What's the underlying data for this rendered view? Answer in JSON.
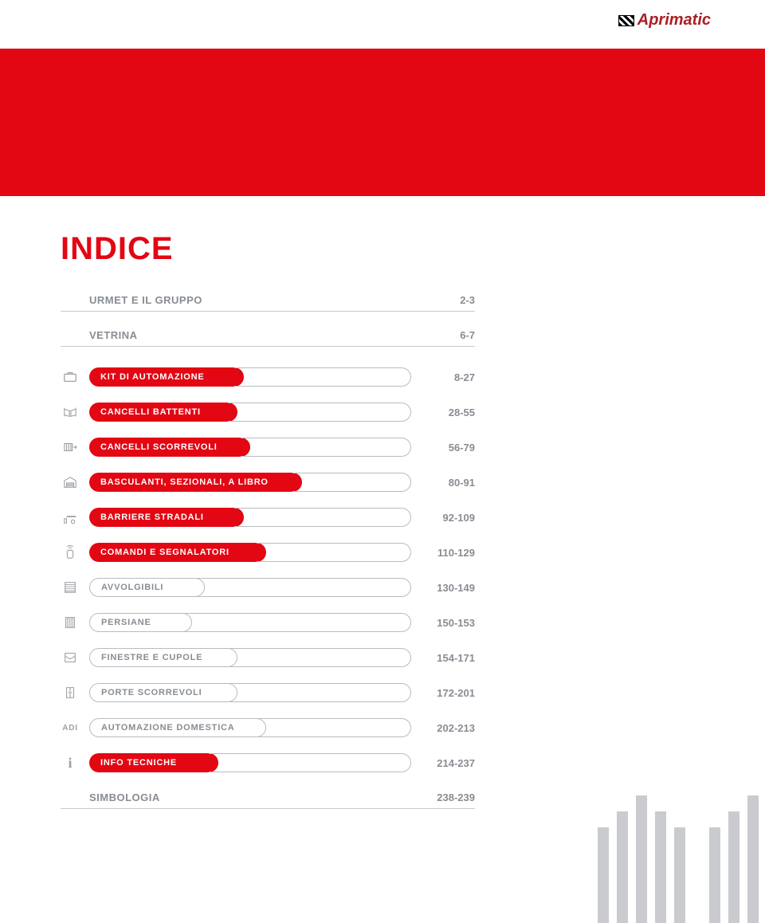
{
  "logo_text": "Aprimatic",
  "title": "INDICE",
  "colors": {
    "red": "#e30613",
    "grey_text": "#888d93",
    "grey_border": "#b8bcc0"
  },
  "plain_rows": [
    {
      "label": "URMET E IL GRUPPO",
      "pages": "2-3"
    },
    {
      "label": "VETRINA",
      "pages": "6-7"
    }
  ],
  "pill_rows": [
    {
      "label": "KIT DI AUTOMAZIONE",
      "pages": "8-27",
      "fill_pct": 48,
      "red": true,
      "icon": "kit"
    },
    {
      "label": "CANCELLI BATTENTI",
      "pages": "28-55",
      "fill_pct": 46,
      "red": true,
      "icon": "swing"
    },
    {
      "label": "CANCELLI SCORREVOLI",
      "pages": "56-79",
      "fill_pct": 50,
      "red": true,
      "icon": "sliding"
    },
    {
      "label": "BASCULANTI, SEZIONALI, A LIBRO",
      "pages": "80-91",
      "fill_pct": 66,
      "red": true,
      "icon": "garage"
    },
    {
      "label": "BARRIERE STRADALI",
      "pages": "92-109",
      "fill_pct": 48,
      "red": true,
      "icon": "barrier"
    },
    {
      "label": "COMANDI E SEGNALATORI",
      "pages": "110-129",
      "fill_pct": 55,
      "red": true,
      "icon": "remote"
    },
    {
      "label": "AVVOLGIBILI",
      "pages": "130-149",
      "fill_pct": 36,
      "red": false,
      "icon": "roller"
    },
    {
      "label": "PERSIANE",
      "pages": "150-153",
      "fill_pct": 32,
      "red": false,
      "icon": "shutter"
    },
    {
      "label": "FINESTRE E CUPOLE",
      "pages": "154-171",
      "fill_pct": 46,
      "red": false,
      "icon": "window"
    },
    {
      "label": "PORTE SCORREVOLI",
      "pages": "172-201",
      "fill_pct": 46,
      "red": false,
      "icon": "door"
    },
    {
      "label": "AUTOMAZIONE DOMESTICA",
      "pages": "202-213",
      "fill_pct": 55,
      "red": false,
      "icon": "adi"
    },
    {
      "label": "INFO TECNICHE",
      "pages": "214-237",
      "fill_pct": 40,
      "red": true,
      "icon": "info"
    }
  ],
  "footer_row": {
    "label": "SIMBOLOGIA",
    "pages": "238-239"
  }
}
